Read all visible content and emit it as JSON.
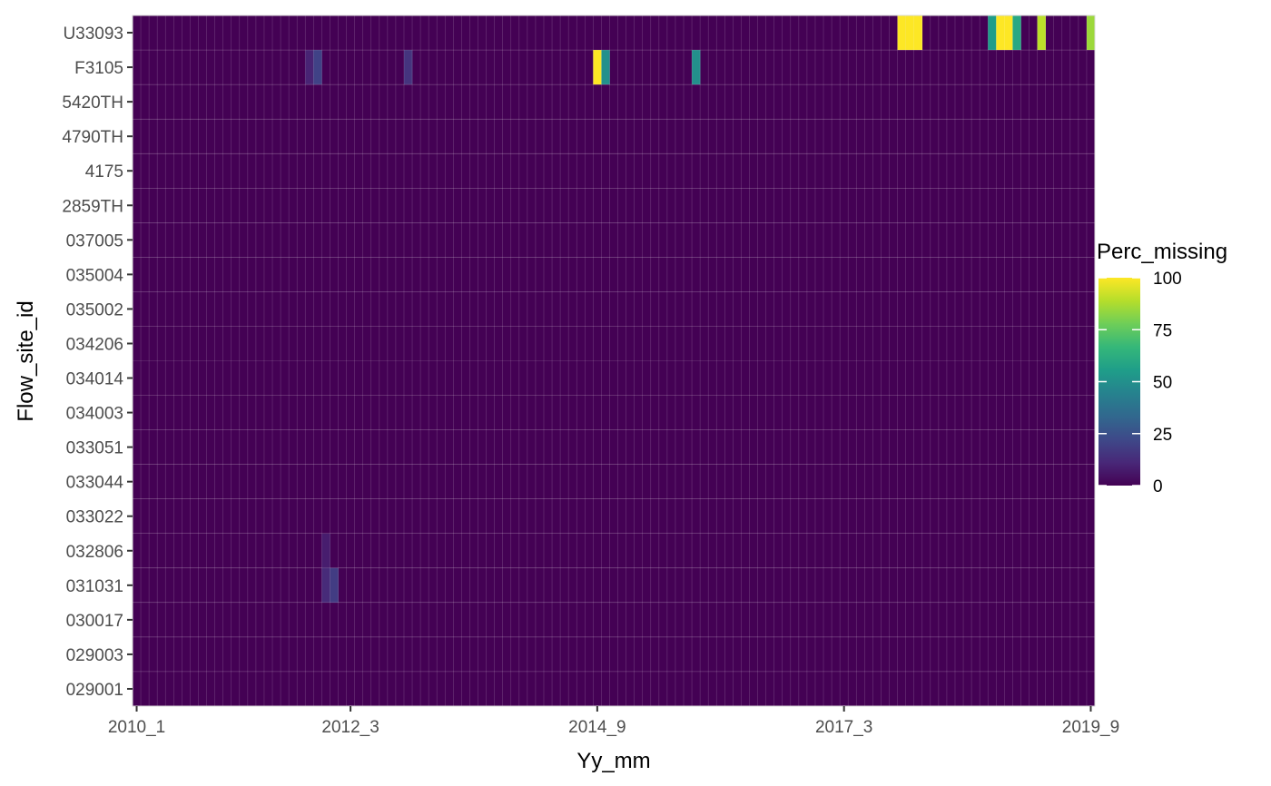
{
  "chart_data": {
    "type": "heatmap",
    "title": "",
    "xlabel": "Yy_mm",
    "ylabel": "Flow_site_id",
    "x_start": "2010_1",
    "x_end": "2019_9",
    "x_ticks": [
      "2010_1",
      "2012_3",
      "2014_9",
      "2017_3",
      "2019_9"
    ],
    "y_categories": [
      "029001",
      "029003",
      "030017",
      "031031",
      "032806",
      "033022",
      "033044",
      "033051",
      "034003",
      "034014",
      "034206",
      "035002",
      "035004",
      "037005",
      "2859TH",
      "4175",
      "4790TH",
      "5420TH",
      "F3105",
      "U33093"
    ],
    "value_range": [
      0,
      100
    ],
    "background_value": 0,
    "nonzero_cells": [
      {
        "site": "F3105",
        "month": "2011_10",
        "value": 10
      },
      {
        "site": "F3105",
        "month": "2011_11",
        "value": 20
      },
      {
        "site": "F3105",
        "month": "2012_10",
        "value": 15
      },
      {
        "site": "F3105",
        "month": "2014_9",
        "value": 100
      },
      {
        "site": "F3105",
        "month": "2014_10",
        "value": 50
      },
      {
        "site": "F3105",
        "month": "2015_9",
        "value": 50
      },
      {
        "site": "032806",
        "month": "2011_12",
        "value": 8
      },
      {
        "site": "031031",
        "month": "2011_12",
        "value": 12
      },
      {
        "site": "031031",
        "month": "2012_1",
        "value": 18
      },
      {
        "site": "U33093",
        "month": "2017_10",
        "value": 100
      },
      {
        "site": "U33093",
        "month": "2017_11",
        "value": 100
      },
      {
        "site": "U33093",
        "month": "2017_12",
        "value": 100
      },
      {
        "site": "U33093",
        "month": "2018_9",
        "value": 55
      },
      {
        "site": "U33093",
        "month": "2018_10",
        "value": 100
      },
      {
        "site": "U33093",
        "month": "2018_11",
        "value": 100
      },
      {
        "site": "U33093",
        "month": "2018_12",
        "value": 60
      },
      {
        "site": "U33093",
        "month": "2019_3",
        "value": 90
      },
      {
        "site": "U33093",
        "month": "2019_9",
        "value": 85
      }
    ],
    "legend": {
      "title": "Perc_missing",
      "ticks": [
        0,
        25,
        50,
        75,
        100
      ],
      "colormap": "viridis",
      "placement": "right"
    },
    "grid": true
  }
}
